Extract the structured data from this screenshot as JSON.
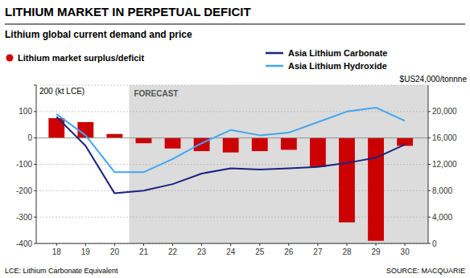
{
  "chart_data": {
    "type": "bar",
    "title": "LITHIUM MARKET IN PERPETUAL DEFICIT",
    "subtitle": "Lithium global current demand and price",
    "x": [
      18,
      19,
      20,
      21,
      22,
      23,
      24,
      25,
      26,
      27,
      28,
      29,
      30
    ],
    "xlim": [
      17.3,
      30.8
    ],
    "xticks": [
      18,
      19,
      20,
      21,
      22,
      23,
      24,
      25,
      26,
      27,
      28,
      29,
      30
    ],
    "series": [
      {
        "name": "Lithium market surplus/deficit",
        "type": "bar",
        "color": "#cc0000",
        "values": [
          75,
          60,
          15,
          -20,
          -40,
          -50,
          -55,
          -50,
          -45,
          -110,
          -320,
          -390,
          -30
        ]
      },
      {
        "name": "Asia Lithium Carbonate",
        "type": "line",
        "color": "#1a237e",
        "values": [
          80,
          -30,
          -210,
          -200,
          -175,
          -135,
          -115,
          -120,
          -115,
          -110,
          -95,
          -75,
          -25
        ]
      },
      {
        "name": "Asia Lithium Hydroxide",
        "type": "line",
        "color": "#42a5f5",
        "values": [
          90,
          10,
          -130,
          -130,
          -80,
          -20,
          30,
          10,
          20,
          60,
          100,
          115,
          65
        ]
      }
    ],
    "ylim": [
      -400,
      200
    ],
    "yticks": [
      -400,
      -300,
      -200,
      -100,
      0,
      100,
      {
        "value": 200,
        "label": "200 (kt LCE)"
      }
    ],
    "y2lim": [
      0,
      24000
    ],
    "y2ticks": [
      0,
      {
        "value": 4000,
        "label": "4,000"
      },
      {
        "value": 8000,
        "label": "8,000"
      },
      {
        "value": 12000,
        "label": "12,000"
      },
      {
        "value": 16000,
        "label": "16,000"
      },
      {
        "value": 20000,
        "label": "20,000"
      }
    ],
    "y2label": "$US24,000/tonnne",
    "annotations": [
      {
        "text": "FORECAST",
        "x_start": 20.5,
        "color": "#dcdcdc"
      }
    ],
    "note": "LCE: Lithium Carbonate Equivalent",
    "source": "SOURCE: MACQUARIE",
    "grid": true
  }
}
